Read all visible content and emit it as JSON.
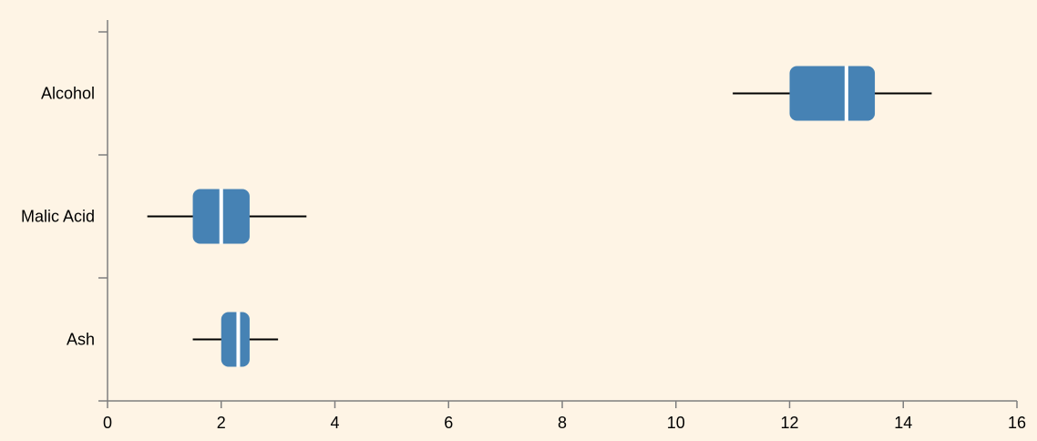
{
  "chart_data": {
    "type": "box",
    "title": "",
    "xlabel": "",
    "ylabel": "",
    "xlim": [
      0,
      16
    ],
    "x_ticks": [
      0,
      2,
      4,
      6,
      8,
      10,
      12,
      14,
      16
    ],
    "grid": false,
    "categories": [
      "Alcohol",
      "Malic Acid",
      "Ash"
    ],
    "boxes": [
      {
        "label": "Alcohol",
        "whisker_low": 11.0,
        "q1": 12.0,
        "median": 13.0,
        "q3": 13.5,
        "whisker_high": 14.5
      },
      {
        "label": "Malic Acid",
        "whisker_low": 0.7,
        "q1": 1.5,
        "median": 2.0,
        "q3": 2.5,
        "whisker_high": 3.5
      },
      {
        "label": "Ash",
        "whisker_low": 1.5,
        "q1": 2.0,
        "median": 2.3,
        "q3": 2.5,
        "whisker_high": 3.0
      }
    ],
    "colors": {
      "background": "#fef4e5",
      "box_fill": "#4682b4",
      "median_line": "#ffffff",
      "whisker": "#000000",
      "axis": "#7f7f7f",
      "text": "#000000"
    }
  }
}
